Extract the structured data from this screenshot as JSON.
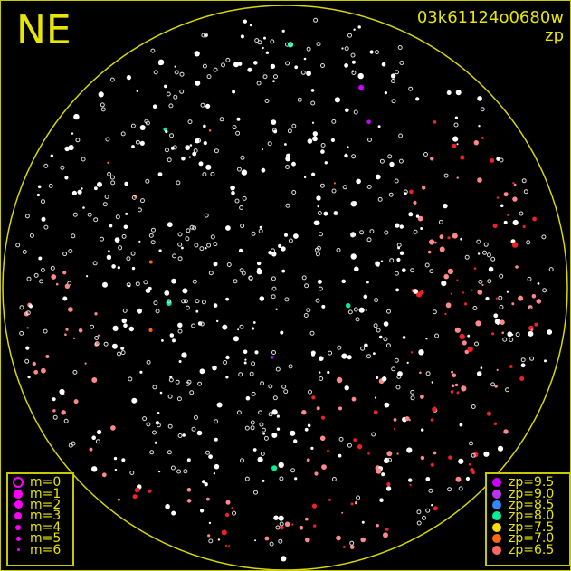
{
  "corner_label": "NE",
  "title": "03k61124o0680w",
  "subtitle": "zp",
  "magnitude_legend": [
    {
      "label": "m=0",
      "style": "ring"
    },
    {
      "label": "m=1",
      "style": "dot"
    },
    {
      "label": "m=2",
      "style": "dot"
    },
    {
      "label": "m=3",
      "style": "dot"
    },
    {
      "label": "m=4",
      "style": "dot"
    },
    {
      "label": "m=5",
      "style": "dot"
    },
    {
      "label": "m=6",
      "style": "dot"
    }
  ],
  "zp_legend": [
    {
      "label": "zp=9.5",
      "color": "#cc00ff"
    },
    {
      "label": "zp=9.0",
      "color": "#bb33ee"
    },
    {
      "label": "zp=8.5",
      "color": "#3388ff"
    },
    {
      "label": "zp=8.0",
      "color": "#00ee99"
    },
    {
      "label": "zp=7.5",
      "color": "#ffdd00"
    },
    {
      "label": "zp=7.0",
      "color": "#ff6611"
    },
    {
      "label": "zp=6.5",
      "color": "#ff6666"
    }
  ],
  "colors": {
    "frame": "#c8c800",
    "text": "#e6e600",
    "legend_marker": "#ff00ff",
    "background": "#000000"
  }
}
